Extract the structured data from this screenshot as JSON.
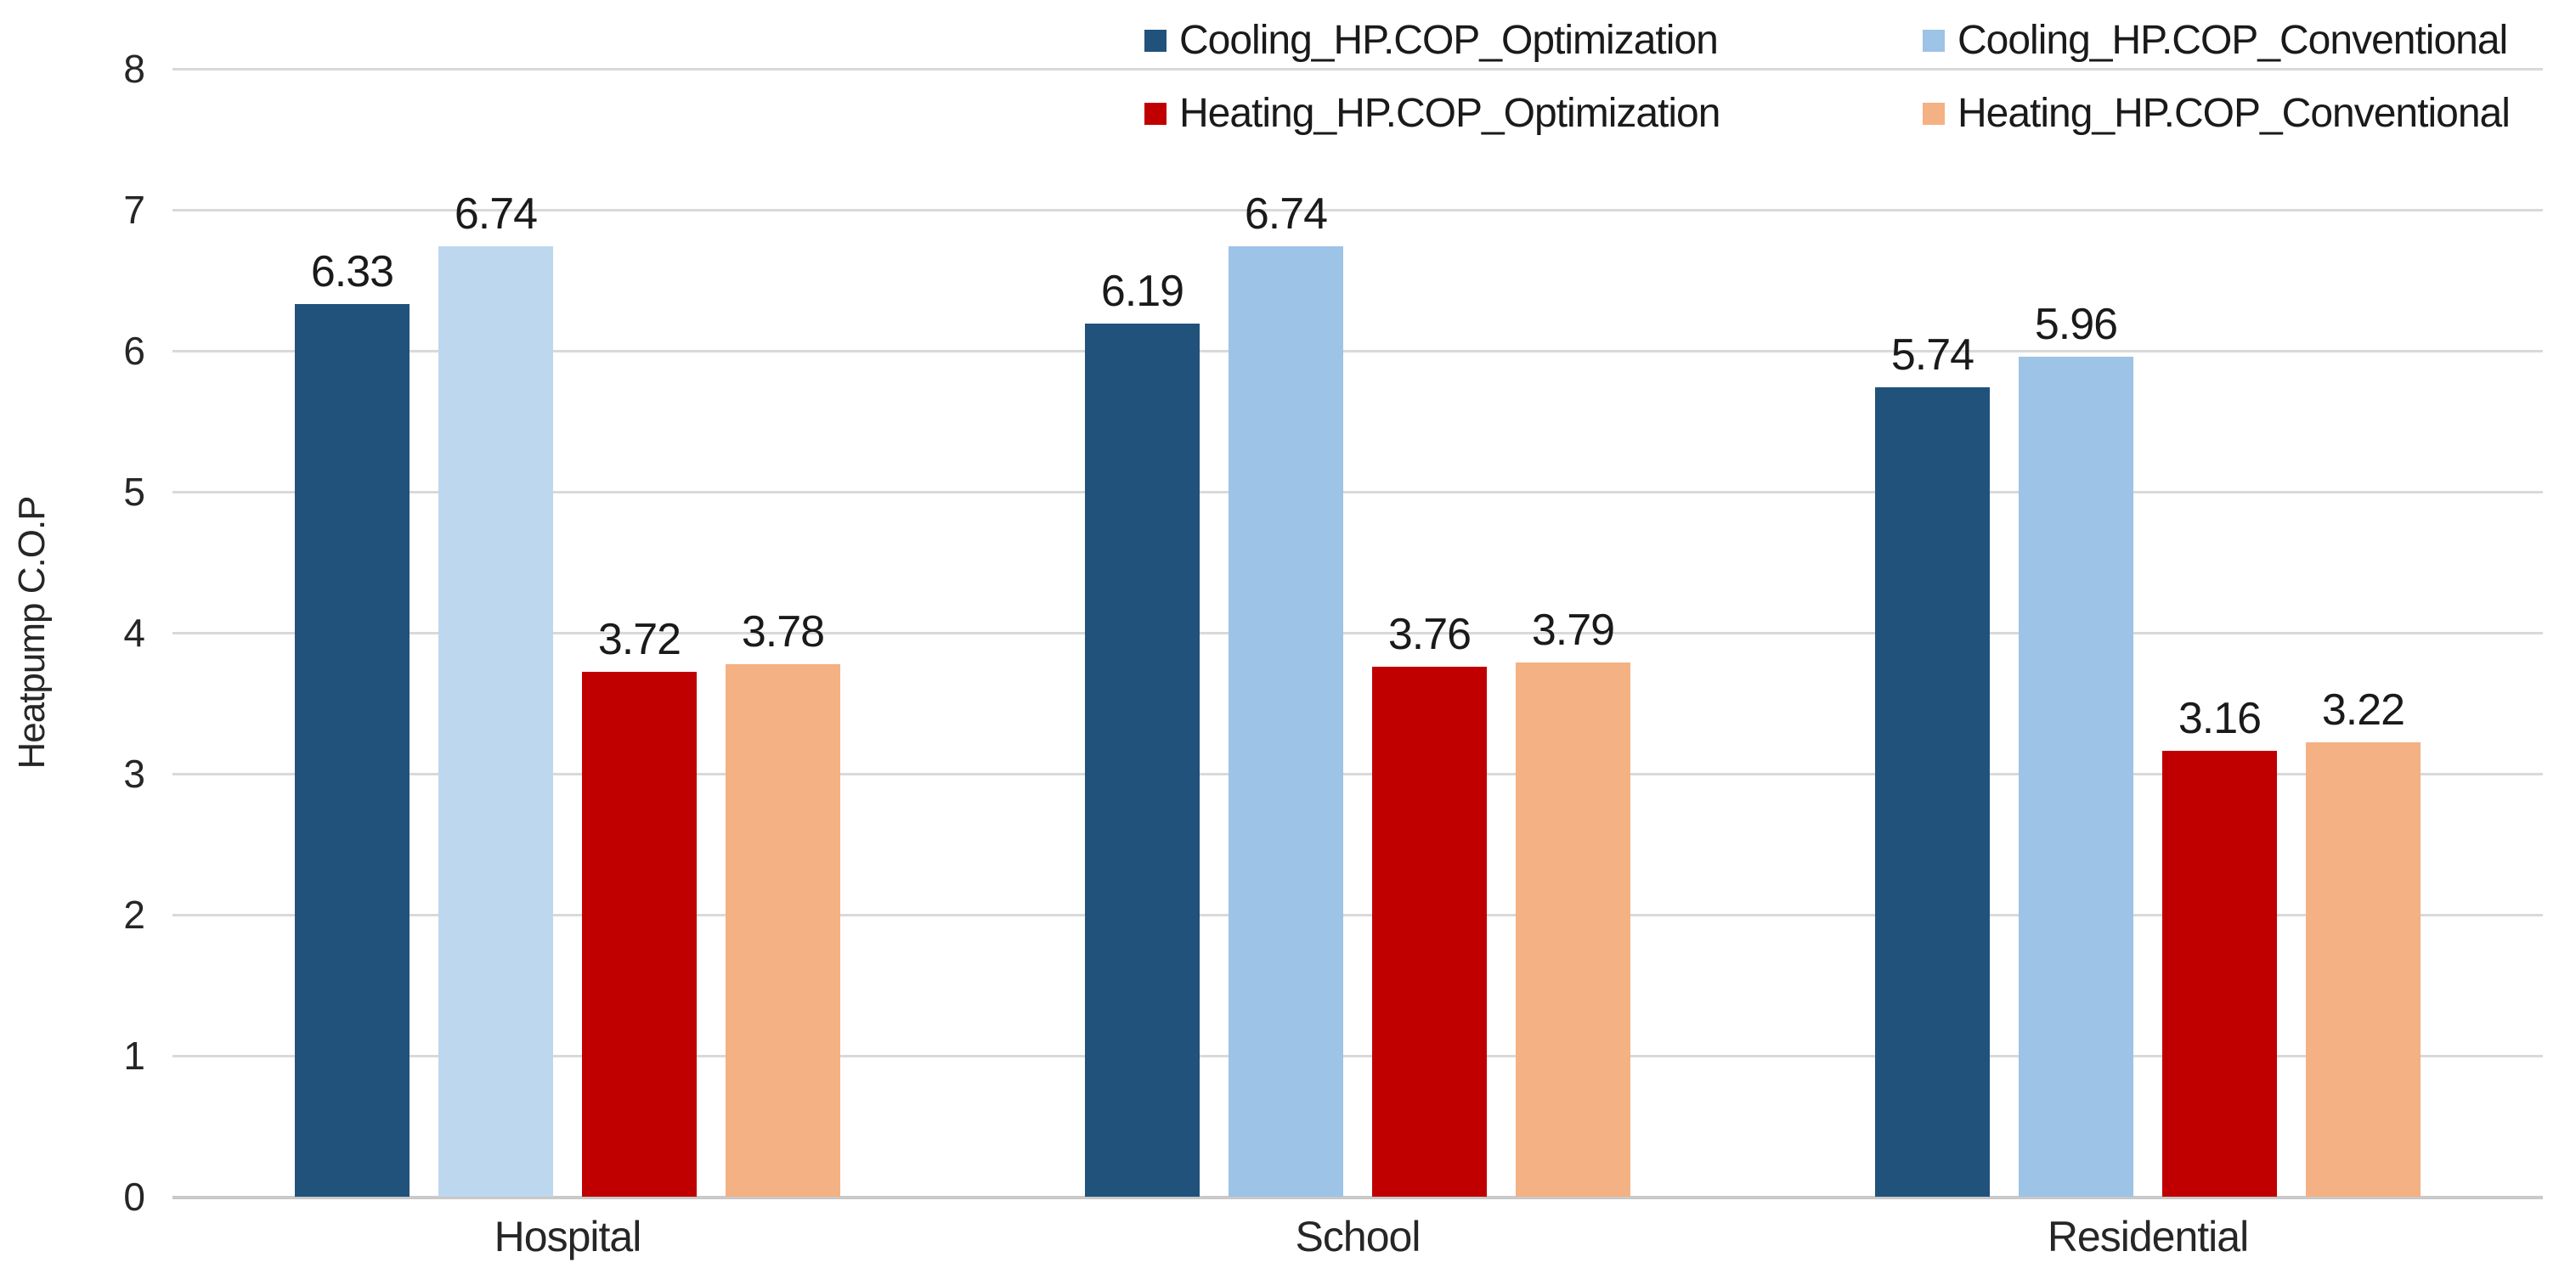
{
  "chart_data": {
    "type": "bar",
    "title": "",
    "xlabel": "",
    "ylabel": "Heatpump C.O.P",
    "ylim": [
      0,
      8
    ],
    "y_ticks": [
      0,
      1,
      2,
      3,
      4,
      5,
      6,
      7,
      8
    ],
    "grid": true,
    "legend_position": "top",
    "categories": [
      "Hospital",
      "School",
      "Residential"
    ],
    "series": [
      {
        "name": "Cooling_HP.COP_Optimization",
        "color": "#20527C",
        "values": [
          6.33,
          6.19,
          5.74
        ],
        "labels": [
          "6.33",
          "6.19",
          "5.74"
        ]
      },
      {
        "name": "Cooling_HP.COP_Conventional",
        "color": "#9DC3E6",
        "bar_colors": [
          "#BDD7EE",
          "#9DC3E6",
          "#9DC3E6"
        ],
        "values": [
          6.74,
          6.74,
          5.96
        ],
        "labels": [
          "6.74",
          "6.74",
          "5.96"
        ]
      },
      {
        "name": "Heating_HP.COP_Optimization",
        "color": "#C00000",
        "values": [
          3.72,
          3.76,
          3.16
        ],
        "labels": [
          "3.72",
          "3.76",
          "3.16"
        ]
      },
      {
        "name": "Heating_HP.COP_Conventional",
        "color": "#F4B183",
        "values": [
          3.78,
          3.79,
          3.22
        ],
        "labels": [
          "3.78",
          "3.79",
          "3.22"
        ]
      }
    ],
    "colors": {
      "gridline": "#D9D9D9",
      "axis_line": "#C9C9C9",
      "text": "#262626"
    }
  }
}
